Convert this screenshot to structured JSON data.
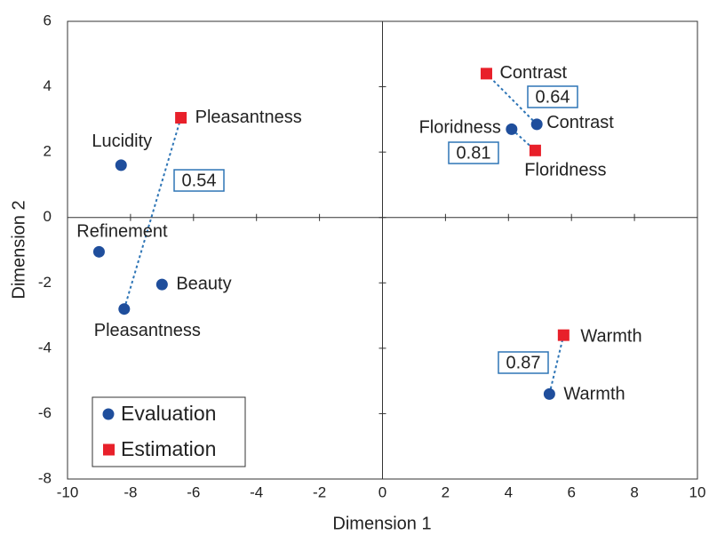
{
  "chart_data": {
    "type": "scatter",
    "xlabel": "Dimension 1",
    "ylabel": "Dimension 2",
    "xlim": [
      -10,
      10
    ],
    "xticks": [
      -10,
      -8,
      -6,
      -4,
      -2,
      0,
      2,
      4,
      6,
      8,
      10
    ],
    "ylim": [
      -8,
      6
    ],
    "yticks": [
      -8,
      -6,
      -4,
      -2,
      0,
      2,
      4,
      6
    ],
    "legend": "lower left",
    "series": [
      {
        "name": "Evaluation",
        "color": "#1f4e9c",
        "marker": "circle",
        "labels": [
          "Pleasantness",
          "Contrast",
          "Floridness",
          "Warmth",
          "Lucidity",
          "Refinement",
          "Beauty"
        ],
        "x": [
          -8.2,
          4.9,
          4.1,
          5.3,
          -8.3,
          -9.0,
          -7.0
        ],
        "values": [
          -2.8,
          2.85,
          2.7,
          -5.4,
          1.6,
          -1.05,
          -2.05
        ]
      },
      {
        "name": "Estimation",
        "color": "#e8202a",
        "marker": "square",
        "labels": [
          "Pleasantness",
          "Contrast",
          "Floridness",
          "Warmth"
        ],
        "x": [
          -6.4,
          3.3,
          4.85,
          5.75
        ],
        "values": [
          3.05,
          4.4,
          2.05,
          -3.6
        ]
      }
    ],
    "correlations": [
      {
        "value": 0.54,
        "label": "0.54"
      },
      {
        "value": 0.64,
        "label": "0.64"
      },
      {
        "value": 0.81,
        "label": "0.81"
      },
      {
        "value": 0.87,
        "label": "0.87"
      }
    ]
  }
}
